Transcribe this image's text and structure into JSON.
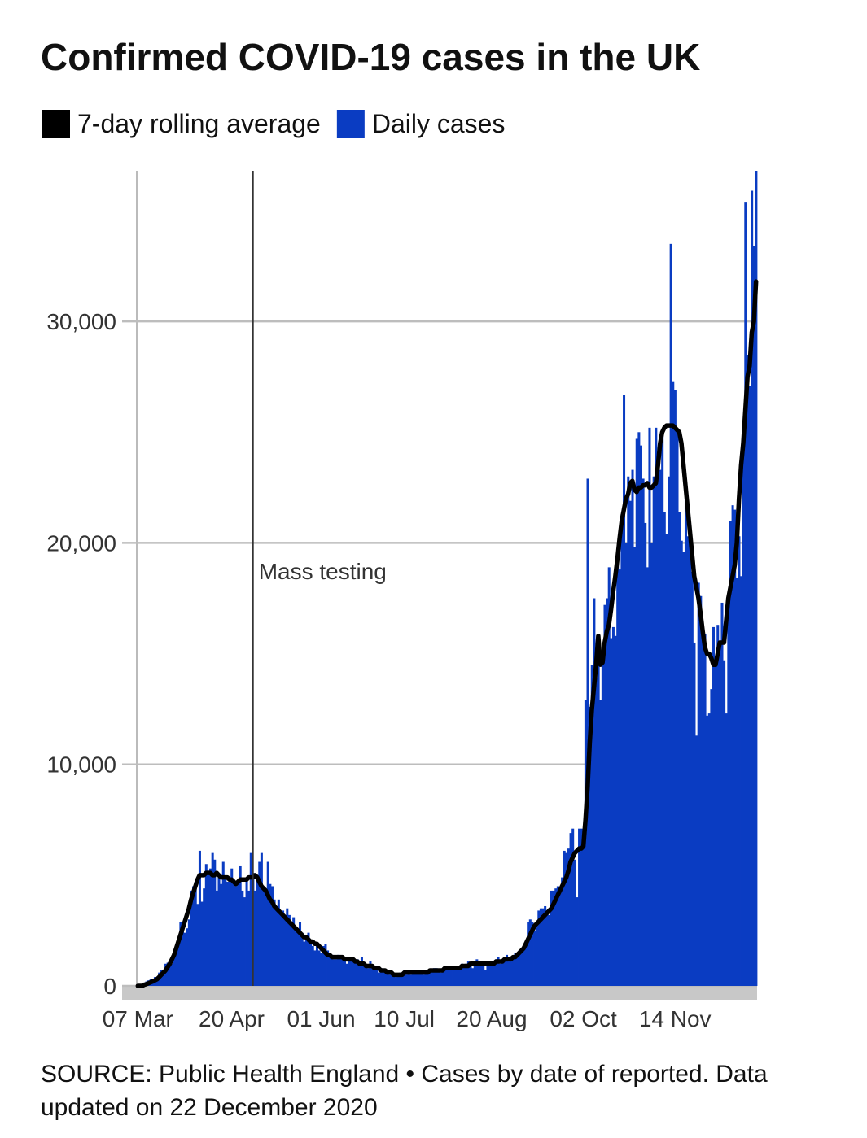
{
  "chart_data": {
    "type": "bar",
    "title": "Confirmed COVID-19 cases in the UK",
    "source": "SOURCE: Public Health England • Cases by date of reported. Data updated on 22 December 2020",
    "categories": [
      "07 Mar",
      null,
      null,
      null,
      null,
      null,
      null,
      null,
      null,
      null,
      null,
      null,
      null,
      null,
      null,
      null,
      null,
      null,
      null,
      null,
      null,
      null,
      null,
      null,
      null,
      null,
      null,
      null,
      null,
      null,
      null,
      null,
      null,
      null,
      null,
      null,
      null,
      null,
      null,
      null,
      null,
      null,
      null,
      null,
      "20 Apr",
      null,
      null,
      null,
      null,
      null,
      null,
      null,
      null,
      null,
      null,
      null,
      null,
      null,
      null,
      null,
      null,
      null,
      null,
      null,
      null,
      null,
      null,
      null,
      null,
      null,
      null,
      null,
      null,
      null,
      null,
      null,
      null,
      null,
      null,
      null,
      null,
      null,
      null,
      null,
      null,
      null,
      "01 Jun",
      null,
      null,
      null,
      null,
      null,
      null,
      null,
      null,
      null,
      null,
      null,
      null,
      null,
      null,
      null,
      null,
      null,
      null,
      null,
      null,
      null,
      null,
      null,
      null,
      null,
      null,
      null,
      null,
      null,
      null,
      null,
      null,
      null,
      null,
      null,
      null,
      null,
      null,
      "10 Jul",
      null,
      null,
      null,
      null,
      null,
      null,
      null,
      null,
      null,
      null,
      null,
      null,
      null,
      null,
      null,
      null,
      null,
      null,
      null,
      null,
      null,
      null,
      null,
      null,
      null,
      null,
      null,
      null,
      null,
      null,
      null,
      null,
      null,
      null,
      null,
      null,
      null,
      null,
      null,
      null,
      "20 Aug",
      null,
      null,
      null,
      null,
      null,
      null,
      null,
      null,
      null,
      null,
      null,
      null,
      null,
      null,
      null,
      null,
      null,
      null,
      null,
      null,
      null,
      null,
      null,
      null,
      null,
      null,
      null,
      null,
      null,
      null,
      null,
      null,
      null,
      null,
      null,
      null,
      null,
      null,
      null,
      null,
      null,
      null,
      "02 Oct",
      null,
      null,
      null,
      null,
      null,
      null,
      null,
      null,
      null,
      null,
      null,
      null,
      null,
      null,
      null,
      null,
      null,
      null,
      null,
      null,
      null,
      null,
      null,
      null,
      null,
      null,
      null,
      null,
      null,
      null,
      null,
      null,
      null,
      null,
      null,
      null,
      null,
      null,
      null,
      null,
      null,
      null,
      "14 Nov",
      null,
      null,
      null,
      null,
      null,
      null,
      null,
      null,
      null,
      null,
      null,
      null,
      null,
      null,
      null,
      null,
      null,
      null,
      null,
      null,
      null,
      null,
      null,
      null,
      null,
      null,
      null,
      null,
      null,
      null,
      null,
      null,
      null,
      null,
      null,
      null,
      null,
      null
    ],
    "series": [
      {
        "name": "7-day rolling average",
        "color": "#000000",
        "type": "line",
        "values": [
          0,
          0,
          0,
          50,
          80,
          120,
          160,
          200,
          250,
          300,
          400,
          500,
          600,
          700,
          850,
          1000,
          1200,
          1400,
          1700,
          2000,
          2300,
          2600,
          2900,
          3200,
          3500,
          3900,
          4200,
          4500,
          4800,
          5000,
          5000,
          5000,
          5100,
          5100,
          5100,
          5000,
          5000,
          5100,
          5000,
          4900,
          4900,
          4900,
          4900,
          4800,
          4800,
          4700,
          4600,
          4700,
          4800,
          4800,
          4800,
          4800,
          4900,
          4900,
          4900,
          5000,
          4900,
          4700,
          4500,
          4400,
          4300,
          4100,
          3900,
          3800,
          3600,
          3500,
          3400,
          3300,
          3200,
          3100,
          3000,
          2900,
          2800,
          2700,
          2600,
          2500,
          2400,
          2300,
          2200,
          2200,
          2100,
          2000,
          2000,
          1900,
          1900,
          1800,
          1700,
          1600,
          1500,
          1400,
          1400,
          1300,
          1300,
          1300,
          1300,
          1300,
          1300,
          1200,
          1200,
          1200,
          1200,
          1200,
          1100,
          1100,
          1000,
          1000,
          1000,
          900,
          900,
          900,
          900,
          800,
          800,
          800,
          700,
          700,
          700,
          600,
          600,
          600,
          500,
          500,
          500,
          500,
          500,
          600,
          600,
          600,
          600,
          600,
          600,
          600,
          600,
          600,
          600,
          600,
          600,
          700,
          700,
          700,
          700,
          700,
          700,
          700,
          800,
          800,
          800,
          800,
          800,
          800,
          800,
          800,
          900,
          900,
          900,
          900,
          1000,
          1000,
          1000,
          1000,
          1000,
          1000,
          1000,
          1000,
          1000,
          1000,
          1000,
          1000,
          1100,
          1100,
          1100,
          1100,
          1200,
          1200,
          1200,
          1200,
          1300,
          1300,
          1400,
          1500,
          1600,
          1700,
          1900,
          2100,
          2300,
          2500,
          2700,
          2800,
          2900,
          3000,
          3100,
          3200,
          3300,
          3400,
          3500,
          3700,
          3900,
          4100,
          4300,
          4500,
          4700,
          4900,
          5200,
          5600,
          5800,
          6000,
          6100,
          6200,
          6200,
          6300,
          7500,
          9000,
          11000,
          12500,
          13500,
          14500,
          15800,
          14500,
          14600,
          15500,
          16000,
          16300,
          17000,
          17800,
          18500,
          19300,
          20200,
          21000,
          21500,
          22000,
          22200,
          22700,
          22800,
          22400,
          22300,
          22500,
          22500,
          22600,
          22600,
          22700,
          22500,
          22500,
          22600,
          22700,
          23500,
          24500,
          25000,
          25200,
          25300,
          25300,
          25300,
          25300,
          25200,
          25100,
          25000,
          24500,
          23500,
          22500,
          21500,
          20500,
          19500,
          18500,
          18000,
          17500,
          16800,
          16000,
          15300,
          15000,
          15000,
          14800,
          14500,
          14500,
          15000,
          15500,
          15500,
          15500,
          16500,
          17500,
          18000,
          18500,
          19000,
          20000,
          22000,
          23500,
          24500,
          26000,
          27500,
          28000,
          29500,
          30000,
          31800
        ]
      },
      {
        "name": "Daily cases",
        "color": "#0a3cc2",
        "type": "bar",
        "values": [
          50,
          40,
          60,
          150,
          200,
          250,
          330,
          150,
          400,
          400,
          600,
          700,
          650,
          1000,
          1050,
          900,
          1000,
          1450,
          1500,
          2100,
          2900,
          2500,
          2400,
          2600,
          3000,
          4300,
          4500,
          4700,
          3700,
          6100,
          3800,
          4400,
          5500,
          5200,
          5300,
          6000,
          5700,
          4300,
          4900,
          4600,
          5600,
          4900,
          4700,
          4700,
          5300,
          4800,
          4500,
          4600,
          5400,
          4300,
          4000,
          4800,
          4300,
          6000,
          5100,
          4300,
          4800,
          5600,
          6000,
          4400,
          4400,
          5600,
          4600,
          4500,
          3900,
          3500,
          3900,
          3300,
          3400,
          3200,
          3500,
          3200,
          2700,
          3100,
          2600,
          2600,
          2900,
          2400,
          2000,
          2100,
          2400,
          1900,
          1800,
          1600,
          1900,
          1600,
          1500,
          1800,
          1900,
          1600,
          1500,
          1400,
          1200,
          1200,
          1400,
          1300,
          1200,
          1200,
          1000,
          1300,
          1200,
          1100,
          1200,
          1200,
          1000,
          1300,
          1000,
          900,
          800,
          1100,
          900,
          800,
          700,
          600,
          800,
          700,
          600,
          600,
          500,
          500,
          600,
          400,
          500,
          600,
          600,
          700,
          500,
          600,
          500,
          600,
          700,
          600,
          700,
          600,
          500,
          700,
          600,
          700,
          700,
          800,
          800,
          700,
          600,
          700,
          800,
          900,
          900,
          800,
          800,
          900,
          900,
          900,
          1000,
          900,
          1000,
          1100,
          1000,
          800,
          1100,
          1200,
          1000,
          1000,
          1000,
          700,
          1000,
          900,
          1100,
          1100,
          1200,
          1300,
          1000,
          1200,
          1300,
          1400,
          1100,
          1200,
          1300,
          1500,
          1500,
          1600,
          1700,
          1800,
          1900,
          2900,
          3000,
          2900,
          2500,
          2700,
          3400,
          3500,
          3500,
          3600,
          3300,
          3200,
          4300,
          4300,
          4400,
          4500,
          4400,
          4900,
          6100,
          6000,
          6200,
          6900,
          7100,
          5700,
          4000,
          7100,
          7100,
          6900,
          12900,
          22900,
          12600,
          14500,
          17500,
          13900,
          15200,
          12900,
          15100,
          17200,
          17500,
          18900,
          15700,
          16200,
          15800,
          19700,
          18800,
          21300,
          26700,
          20000,
          23000,
          21900,
          23300,
          19800,
          24700,
          25000,
          24400,
          22900,
          20900,
          18900,
          25200,
          20000,
          23000,
          25200,
          24100,
          23300,
          25000,
          21400,
          20400,
          23000,
          33500,
          27300,
          26900,
          25000,
          21400,
          20100,
          19600,
          22900,
          20300,
          19900,
          18700,
          15500,
          11300,
          18200,
          17600,
          16000,
          15900,
          12200,
          12300,
          13400,
          16200,
          14900,
          16300,
          15500,
          17300,
          14700,
          12300,
          16600,
          21000,
          21700,
          21500,
          18400,
          20300,
          18500,
          25200,
          35400,
          28500,
          27100,
          35900,
          33400,
          36800
        ]
      }
    ],
    "annotations": [
      {
        "text": "Mass testing",
        "x": 54
      }
    ],
    "ylim": [
      0,
      36800
    ],
    "yticks": [
      0,
      {
        "value": 10000,
        "label": "10,000"
      },
      {
        "value": 20000,
        "label": "20,000"
      },
      {
        "value": 30000,
        "label": "30,000"
      }
    ],
    "grid": true
  }
}
